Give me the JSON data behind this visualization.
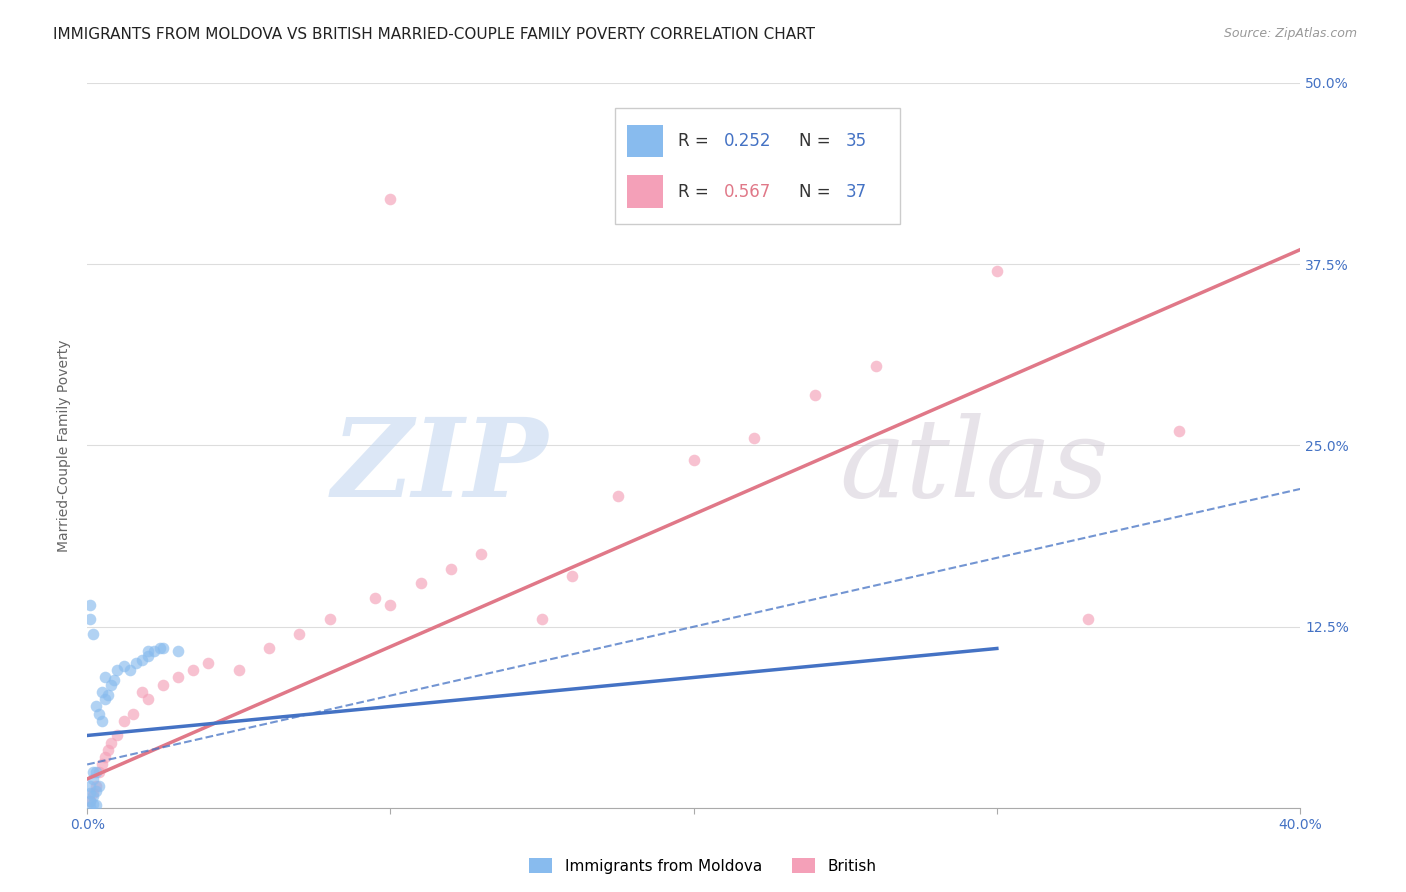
{
  "title": "IMMIGRANTS FROM MOLDOVA VS BRITISH MARRIED-COUPLE FAMILY POVERTY CORRELATION CHART",
  "source": "Source: ZipAtlas.com",
  "ylabel": "Married-Couple Family Poverty",
  "xlim": [
    0.0,
    0.4
  ],
  "ylim": [
    0.0,
    0.5
  ],
  "xtick_positions": [
    0.0,
    0.1,
    0.2,
    0.3,
    0.4
  ],
  "xticklabels": [
    "0.0%",
    "",
    "",
    "",
    "40.0%"
  ],
  "ytick_positions": [
    0.0,
    0.125,
    0.25,
    0.375,
    0.5
  ],
  "yticklabels": [
    "",
    "12.5%",
    "25.0%",
    "37.5%",
    "50.0%"
  ],
  "moldova_scatter_x": [
    0.001,
    0.002,
    0.001,
    0.003,
    0.002,
    0.001,
    0.003,
    0.004,
    0.002,
    0.003,
    0.005,
    0.004,
    0.003,
    0.006,
    0.005,
    0.007,
    0.008,
    0.006,
    0.009,
    0.01,
    0.012,
    0.014,
    0.016,
    0.018,
    0.02,
    0.022,
    0.024,
    0.002,
    0.001,
    0.001,
    0.02,
    0.025,
    0.03,
    0.002,
    0.001
  ],
  "moldova_scatter_y": [
    0.005,
    0.003,
    0.001,
    0.002,
    0.008,
    0.01,
    0.012,
    0.015,
    0.02,
    0.025,
    0.06,
    0.065,
    0.07,
    0.075,
    0.08,
    0.078,
    0.085,
    0.09,
    0.088,
    0.095,
    0.098,
    0.095,
    0.1,
    0.102,
    0.105,
    0.108,
    0.11,
    0.12,
    0.13,
    0.14,
    0.108,
    0.11,
    0.108,
    0.025,
    0.015
  ],
  "british_scatter_x": [
    0.001,
    0.002,
    0.003,
    0.004,
    0.005,
    0.006,
    0.007,
    0.008,
    0.01,
    0.012,
    0.015,
    0.018,
    0.02,
    0.025,
    0.03,
    0.035,
    0.04,
    0.05,
    0.06,
    0.07,
    0.08,
    0.095,
    0.1,
    0.11,
    0.12,
    0.13,
    0.15,
    0.16,
    0.175,
    0.2,
    0.22,
    0.24,
    0.26,
    0.3,
    0.33,
    0.36,
    0.1
  ],
  "british_scatter_y": [
    0.005,
    0.01,
    0.015,
    0.025,
    0.03,
    0.035,
    0.04,
    0.045,
    0.05,
    0.06,
    0.065,
    0.08,
    0.075,
    0.085,
    0.09,
    0.095,
    0.1,
    0.095,
    0.11,
    0.12,
    0.13,
    0.145,
    0.14,
    0.155,
    0.165,
    0.175,
    0.13,
    0.16,
    0.215,
    0.24,
    0.255,
    0.285,
    0.305,
    0.37,
    0.13,
    0.26,
    0.42
  ],
  "moldova_solid_line": {
    "x": [
      0.0,
      0.3
    ],
    "y": [
      0.05,
      0.11
    ]
  },
  "moldova_dashed_line": {
    "x": [
      0.0,
      0.4
    ],
    "y": [
      0.03,
      0.22
    ]
  },
  "british_solid_line": {
    "x": [
      0.0,
      0.4
    ],
    "y": [
      0.02,
      0.385
    ]
  },
  "scatter_alpha": 0.65,
  "scatter_size": 70,
  "background_color": "#ffffff",
  "grid_color": "#dddddd",
  "moldova_color": "#88bbee",
  "british_color": "#f4a0b8",
  "moldova_line_color": "#4472c4",
  "british_line_color": "#e07888",
  "axis_label_color": "#4472c4",
  "tick_color": "#4472c4",
  "title_fontsize": 11,
  "ylabel_fontsize": 10,
  "tick_fontsize": 10,
  "watermark_zip_color": "#c5d8f0",
  "watermark_atlas_color": "#d0c8d4"
}
